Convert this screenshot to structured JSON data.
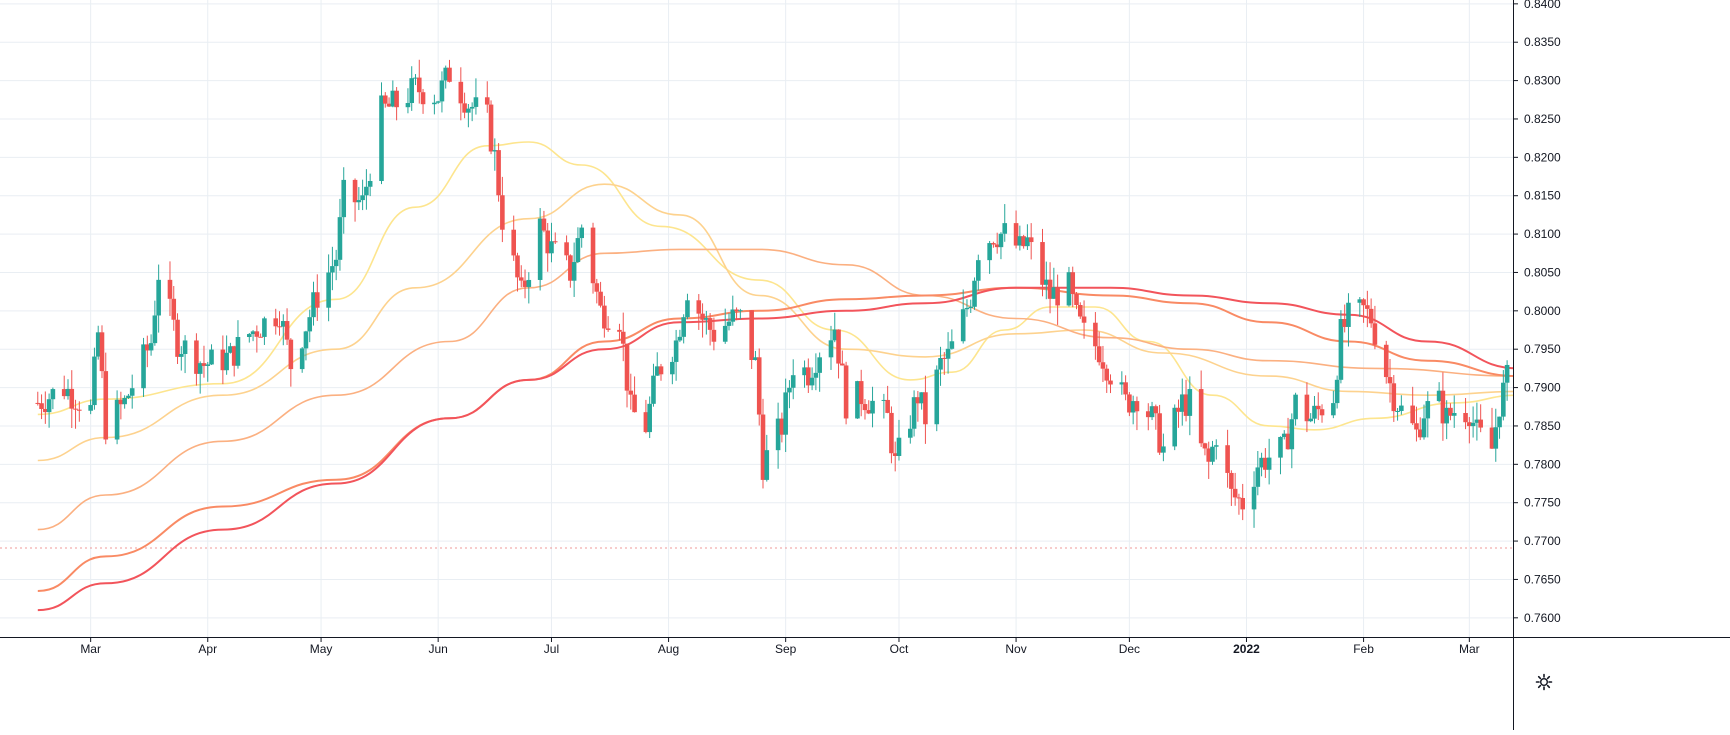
{
  "chart_data": {
    "type": "candlestick",
    "title": "",
    "xlabel": "",
    "ylabel": "",
    "ylim": [
      0.7575,
      0.8405
    ],
    "grid": true,
    "x_ticks": [
      "Mar",
      "Apr",
      "May",
      "Jun",
      "Jul",
      "Aug",
      "Sep",
      "Oct",
      "Nov",
      "Dec",
      "2022",
      "Feb",
      "Mar"
    ],
    "y_ticks": [
      "0.7600",
      "0.7650",
      "0.7700",
      "0.7750",
      "0.7800",
      "0.7850",
      "0.7900",
      "0.7950",
      "0.8000",
      "0.8050",
      "0.8100",
      "0.8150",
      "0.8200",
      "0.8250",
      "0.8300",
      "0.8350",
      "0.8400"
    ],
    "reference_line": 0.7691,
    "colors": {
      "up": "#26a69a",
      "down": "#ef5350",
      "ref_line": "#ef9a9a",
      "grid": "#e9eef3",
      "ma_lightest": "#fde58e",
      "ma_light": "#fdd28e",
      "ma_mid": "#fbb081",
      "ma_orange": "#f98a64",
      "ma_red": "#f2545b"
    },
    "price_path": [
      [
        "2021-02-15",
        0.788
      ],
      [
        "2021-02-22",
        0.79
      ],
      [
        "2021-03-01",
        0.787
      ],
      [
        "2021-03-03",
        0.797
      ],
      [
        "2021-03-05",
        0.785
      ],
      [
        "2021-03-10",
        0.788
      ],
      [
        "2021-03-17",
        0.796
      ],
      [
        "2021-03-19",
        0.805
      ],
      [
        "2021-03-24",
        0.796
      ],
      [
        "2021-03-31",
        0.793
      ],
      [
        "2021-04-07",
        0.794
      ],
      [
        "2021-04-12",
        0.797
      ],
      [
        "2021-04-20",
        0.8
      ],
      [
        "2021-04-23",
        0.793
      ],
      [
        "2021-04-30",
        0.802
      ],
      [
        "2021-05-05",
        0.807
      ],
      [
        "2021-05-07",
        0.815
      ],
      [
        "2021-05-12",
        0.814
      ],
      [
        "2021-05-17",
        0.826
      ],
      [
        "2021-05-21",
        0.827
      ],
      [
        "2021-05-26",
        0.829
      ],
      [
        "2021-06-01",
        0.828
      ],
      [
        "2021-06-04",
        0.831
      ],
      [
        "2021-06-09",
        0.827
      ],
      [
        "2021-06-14",
        0.825
      ],
      [
        "2021-06-16",
        0.82
      ],
      [
        "2021-06-18",
        0.812
      ],
      [
        "2021-06-23",
        0.802
      ],
      [
        "2021-06-28",
        0.811
      ],
      [
        "2021-07-01",
        0.808
      ],
      [
        "2021-07-06",
        0.805
      ],
      [
        "2021-07-09",
        0.811
      ],
      [
        "2021-07-14",
        0.8
      ],
      [
        "2021-07-19",
        0.799
      ],
      [
        "2021-07-22",
        0.787
      ],
      [
        "2021-07-26",
        0.785
      ],
      [
        "2021-07-29",
        0.792
      ],
      [
        "2021-08-03",
        0.796
      ],
      [
        "2021-08-06",
        0.803
      ],
      [
        "2021-08-10",
        0.799
      ],
      [
        "2021-08-13",
        0.797
      ],
      [
        "2021-08-18",
        0.799
      ],
      [
        "2021-08-20",
        0.799
      ],
      [
        "2021-08-24",
        0.793
      ],
      [
        "2021-08-26",
        0.78
      ],
      [
        "2021-08-31",
        0.785
      ],
      [
        "2021-09-03",
        0.793
      ],
      [
        "2021-09-07",
        0.792
      ],
      [
        "2021-09-10",
        0.795
      ],
      [
        "2021-09-14",
        0.798
      ],
      [
        "2021-09-17",
        0.788
      ],
      [
        "2021-09-21",
        0.789
      ],
      [
        "2021-09-24",
        0.788
      ],
      [
        "2021-09-28",
        0.786
      ],
      [
        "2021-09-30",
        0.78
      ],
      [
        "2021-10-04",
        0.786
      ],
      [
        "2021-10-06",
        0.789
      ],
      [
        "2021-10-08",
        0.786
      ],
      [
        "2021-10-12",
        0.793
      ],
      [
        "2021-10-14",
        0.794
      ],
      [
        "2021-10-18",
        0.799
      ],
      [
        "2021-10-20",
        0.802
      ],
      [
        "2021-10-22",
        0.808
      ],
      [
        "2021-10-26",
        0.81
      ],
      [
        "2021-10-29",
        0.81
      ],
      [
        "2021-11-02",
        0.808
      ],
      [
        "2021-11-04",
        0.809
      ],
      [
        "2021-11-08",
        0.804
      ],
      [
        "2021-11-10",
        0.802
      ],
      [
        "2021-11-15",
        0.803
      ],
      [
        "2021-11-17",
        0.799
      ],
      [
        "2021-11-19",
        0.797
      ],
      [
        "2021-11-23",
        0.795
      ],
      [
        "2021-11-26",
        0.792
      ],
      [
        "2021-11-30",
        0.788
      ],
      [
        "2021-12-03",
        0.789
      ],
      [
        "2021-12-07",
        0.786
      ],
      [
        "2021-12-10",
        0.782
      ],
      [
        "2021-12-15",
        0.788
      ],
      [
        "2021-12-17",
        0.788
      ],
      [
        "2021-12-20",
        0.782
      ],
      [
        "2021-12-22",
        0.78
      ],
      [
        "2021-12-24",
        0.784
      ],
      [
        "2021-12-28",
        0.776
      ],
      [
        "2021-12-31",
        0.775
      ],
      [
        "2022-01-04",
        0.78
      ],
      [
        "2022-01-07",
        0.781
      ],
      [
        "2022-01-11",
        0.782
      ],
      [
        "2022-01-14",
        0.788
      ],
      [
        "2022-01-18",
        0.786
      ],
      [
        "2022-01-20",
        0.787
      ],
      [
        "2022-01-24",
        0.789
      ],
      [
        "2022-01-26",
        0.797
      ],
      [
        "2022-01-28",
        0.799
      ],
      [
        "2022-02-01",
        0.8
      ],
      [
        "2022-02-03",
        0.799
      ],
      [
        "2022-02-07",
        0.792
      ],
      [
        "2022-02-09",
        0.789
      ],
      [
        "2022-02-11",
        0.787
      ],
      [
        "2022-02-15",
        0.784
      ],
      [
        "2022-02-17",
        0.787
      ],
      [
        "2022-02-21",
        0.788
      ],
      [
        "2022-02-23",
        0.786
      ],
      [
        "2022-02-25",
        0.787
      ],
      [
        "2022-03-01",
        0.787
      ],
      [
        "2022-03-03",
        0.784
      ],
      [
        "2022-03-07",
        0.782
      ],
      [
        "2022-03-09",
        0.788
      ],
      [
        "2022-03-11",
        0.791
      ],
      [
        "2022-03-14",
        0.787
      ]
    ],
    "series": [
      {
        "values": [
          [
            "2021-02-15",
            0.7865
          ],
          [
            "2021-03-05",
            0.7885
          ],
          [
            "2021-04-05",
            0.7905
          ],
          [
            "2021-05-05",
            0.8015
          ],
          [
            "2021-05-26",
            0.8135
          ],
          [
            "2021-06-14",
            0.8215
          ],
          [
            "2021-06-25",
            0.822
          ],
          [
            "2021-07-09",
            0.819
          ],
          [
            "2021-07-30",
            0.811
          ],
          [
            "2021-08-25",
            0.804
          ],
          [
            "2021-09-14",
            0.7975
          ],
          [
            "2021-10-04",
            0.791
          ],
          [
            "2021-10-15",
            0.792
          ],
          [
            "2021-10-29",
            0.7975
          ],
          [
            "2021-11-10",
            0.8005
          ],
          [
            "2021-11-22",
            0.8005
          ],
          [
            "2021-12-06",
            0.796
          ],
          [
            "2021-12-23",
            0.789
          ],
          [
            "2022-01-07",
            0.785
          ],
          [
            "2022-01-19",
            0.7845
          ],
          [
            "2022-02-04",
            0.786
          ],
          [
            "2022-02-25",
            0.788
          ],
          [
            "2022-03-14",
            0.789
          ]
        ]
      },
      {
        "values": [
          [
            "2021-02-15",
            0.7805
          ],
          [
            "2021-03-05",
            0.7835
          ],
          [
            "2021-04-05",
            0.789
          ],
          [
            "2021-05-05",
            0.795
          ],
          [
            "2021-05-26",
            0.803
          ],
          [
            "2021-06-25",
            0.812
          ],
          [
            "2021-07-15",
            0.8165
          ],
          [
            "2021-08-04",
            0.8125
          ],
          [
            "2021-08-25",
            0.802
          ],
          [
            "2021-09-17",
            0.795
          ],
          [
            "2021-10-08",
            0.794
          ],
          [
            "2021-11-01",
            0.797
          ],
          [
            "2021-11-19",
            0.7975
          ],
          [
            "2021-12-10",
            0.7945
          ],
          [
            "2022-01-07",
            0.7915
          ],
          [
            "2022-01-28",
            0.7895
          ],
          [
            "2022-02-18",
            0.789
          ],
          [
            "2022-03-14",
            0.7895
          ]
        ]
      },
      {
        "values": [
          [
            "2021-02-15",
            0.7715
          ],
          [
            "2021-03-05",
            0.776
          ],
          [
            "2021-04-05",
            0.783
          ],
          [
            "2021-05-05",
            0.789
          ],
          [
            "2021-06-04",
            0.796
          ],
          [
            "2021-06-25",
            0.803
          ],
          [
            "2021-07-15",
            0.8075
          ],
          [
            "2021-08-04",
            0.808
          ],
          [
            "2021-08-25",
            0.808
          ],
          [
            "2021-09-17",
            0.806
          ],
          [
            "2021-10-08",
            0.802
          ],
          [
            "2021-11-01",
            0.799
          ],
          [
            "2021-11-26",
            0.7965
          ],
          [
            "2021-12-17",
            0.795
          ],
          [
            "2022-01-07",
            0.7935
          ],
          [
            "2022-02-04",
            0.7925
          ],
          [
            "2022-03-14",
            0.7915
          ]
        ]
      },
      {
        "values": [
          [
            "2021-02-15",
            0.7635
          ],
          [
            "2021-03-05",
            0.768
          ],
          [
            "2021-04-05",
            0.7745
          ],
          [
            "2021-05-05",
            0.778
          ],
          [
            "2021-06-04",
            0.786
          ],
          [
            "2021-06-25",
            0.791
          ],
          [
            "2021-07-15",
            0.796
          ],
          [
            "2021-08-04",
            0.799
          ],
          [
            "2021-08-25",
            0.8
          ],
          [
            "2021-09-17",
            0.8015
          ],
          [
            "2021-10-08",
            0.802
          ],
          [
            "2021-11-01",
            0.803
          ],
          [
            "2021-11-26",
            0.802
          ],
          [
            "2021-12-17",
            0.801
          ],
          [
            "2022-01-07",
            0.7985
          ],
          [
            "2022-01-28",
            0.796
          ],
          [
            "2022-02-18",
            0.7935
          ],
          [
            "2022-03-14",
            0.7915
          ]
        ]
      },
      {
        "values": [
          [
            "2021-02-15",
            0.761
          ],
          [
            "2021-03-05",
            0.7645
          ],
          [
            "2021-04-05",
            0.7715
          ],
          [
            "2021-05-05",
            0.7775
          ],
          [
            "2021-06-04",
            0.786
          ],
          [
            "2021-06-25",
            0.791
          ],
          [
            "2021-07-15",
            0.795
          ],
          [
            "2021-08-04",
            0.7985
          ],
          [
            "2021-08-25",
            0.799
          ],
          [
            "2021-09-17",
            0.8
          ],
          [
            "2021-10-08",
            0.801
          ],
          [
            "2021-11-01",
            0.803
          ],
          [
            "2021-11-26",
            0.803
          ],
          [
            "2021-12-17",
            0.802
          ],
          [
            "2022-01-07",
            0.801
          ],
          [
            "2022-01-28",
            0.7995
          ],
          [
            "2022-02-18",
            0.796
          ],
          [
            "2022-03-14",
            0.7925
          ]
        ]
      }
    ]
  },
  "toolbar": {
    "settings_icon": "gear-icon"
  }
}
